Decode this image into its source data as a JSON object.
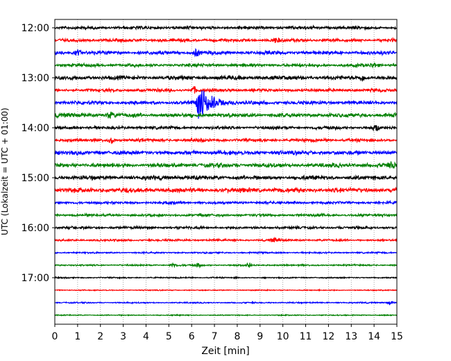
{
  "chart_data": {
    "type": "line",
    "xlabel": "Zeit  [min]",
    "ylabel": "UTC (Lokalzeit = UTC + 01:00)",
    "xlim": [
      0,
      15
    ],
    "x_ticks": [
      "0",
      "1",
      "2",
      "3",
      "4",
      "5",
      "6",
      "7",
      "8",
      "9",
      "10",
      "11",
      "12",
      "13",
      "14",
      "15"
    ],
    "y_ticks": [
      "12:00",
      "13:00",
      "14:00",
      "15:00",
      "16:00",
      "17:00"
    ],
    "grid": "vertical dotted",
    "trace_interval_min": 15,
    "start_time": "12:00",
    "trace_colors": [
      "#000000",
      "#ff0000",
      "#0000ff",
      "#008000"
    ],
    "traces": [
      {
        "start": "12:00",
        "color": "#000000",
        "noise": 0.6,
        "bursts": []
      },
      {
        "start": "12:15",
        "color": "#ff0000",
        "noise": 0.6,
        "bursts": [
          {
            "x": 9.7,
            "amp": 1.2
          }
        ]
      },
      {
        "start": "12:30",
        "color": "#0000ff",
        "noise": 0.7,
        "bursts": [
          {
            "x": 1.0,
            "amp": 1.5
          },
          {
            "x": 6.2,
            "amp": 1.8
          }
        ]
      },
      {
        "start": "12:45",
        "color": "#008000",
        "noise": 0.6,
        "bursts": [
          {
            "x": 14.0,
            "amp": 1.2
          }
        ]
      },
      {
        "start": "13:00",
        "color": "#000000",
        "noise": 0.8,
        "bursts": [
          {
            "x": 13.5,
            "amp": 1.3
          }
        ]
      },
      {
        "start": "13:15",
        "color": "#ff0000",
        "noise": 0.6,
        "bursts": [
          {
            "x": 6.1,
            "amp": 1.8
          }
        ]
      },
      {
        "start": "13:30",
        "color": "#0000ff",
        "noise": 0.7,
        "bursts": [
          {
            "x": 6.25,
            "amp": 12.0
          }
        ]
      },
      {
        "start": "13:45",
        "color": "#008000",
        "noise": 0.8,
        "bursts": [
          {
            "x": 2.4,
            "amp": 1.6
          }
        ]
      },
      {
        "start": "14:00",
        "color": "#000000",
        "noise": 0.6,
        "bursts": [
          {
            "x": 14.1,
            "amp": 1.3
          }
        ]
      },
      {
        "start": "14:15",
        "color": "#ff0000",
        "noise": 0.6,
        "bursts": [
          {
            "x": 2.5,
            "amp": 1.3
          }
        ]
      },
      {
        "start": "14:30",
        "color": "#0000ff",
        "noise": 0.8,
        "bursts": []
      },
      {
        "start": "14:45",
        "color": "#008000",
        "noise": 0.8,
        "bursts": [
          {
            "x": 14.8,
            "amp": 1.3
          }
        ]
      },
      {
        "start": "15:00",
        "color": "#000000",
        "noise": 0.8,
        "bursts": []
      },
      {
        "start": "15:15",
        "color": "#ff0000",
        "noise": 0.9,
        "bursts": []
      },
      {
        "start": "15:30",
        "color": "#0000ff",
        "noise": 0.5,
        "bursts": []
      },
      {
        "start": "15:45",
        "color": "#008000",
        "noise": 0.5,
        "bursts": []
      },
      {
        "start": "16:00",
        "color": "#000000",
        "noise": 0.5,
        "bursts": []
      },
      {
        "start": "16:15",
        "color": "#ff0000",
        "noise": 0.4,
        "bursts": [
          {
            "x": 9.6,
            "amp": 1.0
          }
        ]
      },
      {
        "start": "16:30",
        "color": "#0000ff",
        "noise": 0.3,
        "bursts": []
      },
      {
        "start": "16:45",
        "color": "#008000",
        "noise": 0.3,
        "bursts": [
          {
            "x": 5.2,
            "amp": 1.0
          },
          {
            "x": 6.3,
            "amp": 1.0
          },
          {
            "x": 8.5,
            "amp": 1.4
          }
        ]
      },
      {
        "start": "17:00",
        "color": "#000000",
        "noise": 0.25,
        "bursts": []
      },
      {
        "start": "17:15",
        "color": "#ff0000",
        "noise": 0.2,
        "bursts": []
      },
      {
        "start": "17:30",
        "color": "#0000ff",
        "noise": 0.25,
        "bursts": [
          {
            "x": 14.7,
            "amp": 0.8
          }
        ]
      },
      {
        "start": "17:45",
        "color": "#008000",
        "noise": 0.2,
        "bursts": []
      }
    ]
  }
}
